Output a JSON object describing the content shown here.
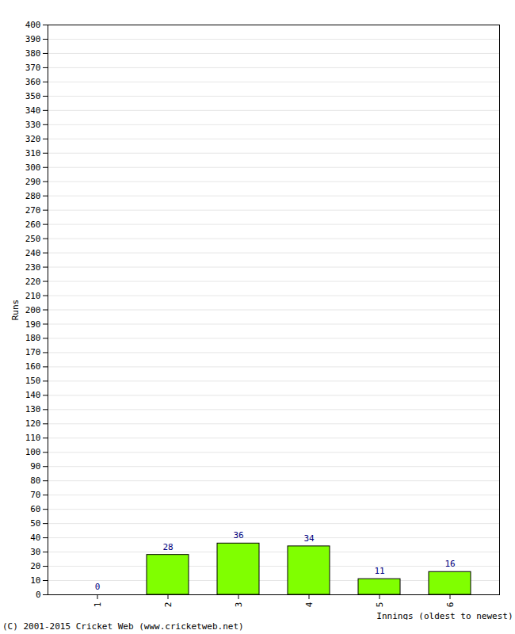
{
  "chart_data": {
    "type": "bar",
    "xlabel": "Innings (oldest to newest)",
    "ylabel": "Runs",
    "caption": "(C) 2001-2015 Cricket Web (www.cricketweb.net)",
    "categories": [
      "1",
      "2",
      "3",
      "4",
      "5",
      "6"
    ],
    "values": [
      0,
      28,
      36,
      34,
      11,
      16
    ],
    "color": "#80ff00",
    "data_labels": true,
    "grid": true,
    "ylim": [
      0,
      400
    ],
    "yticks": [
      0,
      10,
      20,
      30,
      40,
      50,
      60,
      70,
      80,
      90,
      100,
      110,
      120,
      130,
      140,
      150,
      160,
      170,
      180,
      190,
      200,
      210,
      220,
      230,
      240,
      250,
      260,
      270,
      280,
      290,
      300,
      310,
      320,
      330,
      340,
      350,
      360,
      370,
      380,
      390,
      400
    ]
  }
}
